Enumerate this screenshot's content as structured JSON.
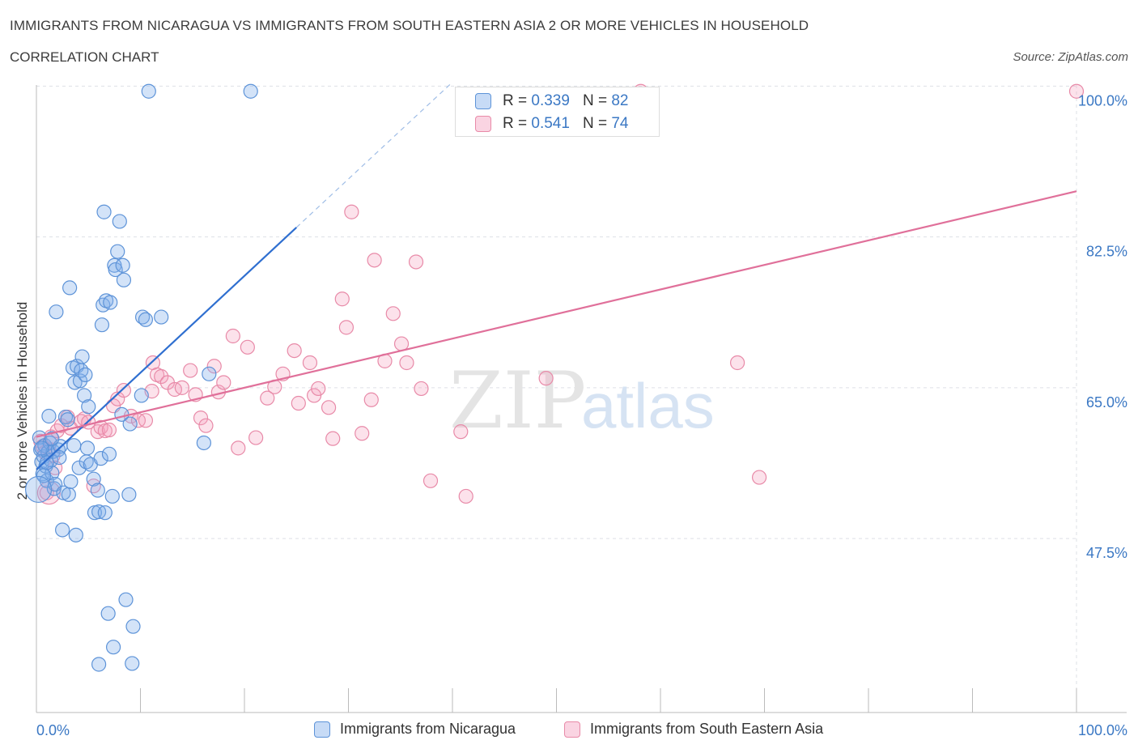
{
  "title": "IMMIGRANTS FROM NICARAGUA VS IMMIGRANTS FROM SOUTH EASTERN ASIA 2 OR MORE VEHICLES IN HOUSEHOLD",
  "subtitle": "CORRELATION CHART",
  "source": "Source: ZipAtlas.com",
  "watermark": {
    "zip": "ZIP",
    "atlas": "atlas"
  },
  "legend_top": [
    {
      "r_label": "R =",
      "r_value": "0.339",
      "n_label": "N =",
      "n_value": "82"
    },
    {
      "r_label": "R =",
      "r_value": "0.541",
      "n_label": "N =",
      "n_value": "74"
    }
  ],
  "legend_bottom": [
    {
      "label": "Immigrants from Nicaragua"
    },
    {
      "label": "Immigrants from South Eastern Asia"
    }
  ],
  "colors": {
    "blue_fill": "rgba(130,175,235,0.35)",
    "blue_stroke": "#5d93d8",
    "blue_line": "#2f6fd0",
    "pink_fill": "rgba(245,160,190,0.30)",
    "pink_stroke": "#e88aa8",
    "pink_line": "#e0709a",
    "grid": "#dde0e6",
    "tick_label": "#3b78c4"
  },
  "chart_data": {
    "type": "scatter",
    "xlabel": "",
    "ylabel": "2 or more Vehicles in Household",
    "xlim": [
      0,
      100
    ],
    "ylim": [
      29,
      99
    ],
    "x_tick_labels": [
      "0.0%",
      "100.0%"
    ],
    "y_ticks": [
      47.5,
      65.0,
      82.5,
      100.0
    ],
    "y_tick_labels": [
      "47.5%",
      "65.0%",
      "82.5%",
      "100.0%"
    ],
    "grid": true,
    "series": [
      {
        "name": "Immigrants from Nicaragua",
        "color": "blue",
        "trend": {
          "x0": 0,
          "y0": 55.5,
          "x1": 25,
          "y1": 83.6,
          "dash_to_x": 40
        },
        "points": [
          [
            0.3,
            59.2
          ],
          [
            0.4,
            57.8
          ],
          [
            0.5,
            56.4
          ],
          [
            0.6,
            55.0
          ],
          [
            0.7,
            57.0
          ],
          [
            0.8,
            58.3
          ],
          [
            0.9,
            55.9
          ],
          [
            1.0,
            54.2
          ],
          [
            1.1,
            57.5
          ],
          [
            1.2,
            61.7
          ],
          [
            1.3,
            58.6
          ],
          [
            1.4,
            56.6
          ],
          [
            1.5,
            55.1
          ],
          [
            1.6,
            57.6
          ],
          [
            1.7,
            53.3
          ],
          [
            1.8,
            53.8
          ],
          [
            1.9,
            73.8
          ],
          [
            2.1,
            57.8
          ],
          [
            2.3,
            58.2
          ],
          [
            2.5,
            48.5
          ],
          [
            2.6,
            52.8
          ],
          [
            2.8,
            61.6
          ],
          [
            3.0,
            61.3
          ],
          [
            3.1,
            52.6
          ],
          [
            3.2,
            76.6
          ],
          [
            3.3,
            54.1
          ],
          [
            3.5,
            67.3
          ],
          [
            3.6,
            58.3
          ],
          [
            3.7,
            65.6
          ],
          [
            3.8,
            47.9
          ],
          [
            3.9,
            67.5
          ],
          [
            4.1,
            55.7
          ],
          [
            4.2,
            65.8
          ],
          [
            4.3,
            67.0
          ],
          [
            4.4,
            68.6
          ],
          [
            4.6,
            64.1
          ],
          [
            4.7,
            66.5
          ],
          [
            4.8,
            56.4
          ],
          [
            4.9,
            58.0
          ],
          [
            5.0,
            62.8
          ],
          [
            5.2,
            56.1
          ],
          [
            5.5,
            54.4
          ],
          [
            5.6,
            50.5
          ],
          [
            5.9,
            53.1
          ],
          [
            6.0,
            50.6
          ],
          [
            6.2,
            56.8
          ],
          [
            6.3,
            72.3
          ],
          [
            6.4,
            74.6
          ],
          [
            6.5,
            85.4
          ],
          [
            6.6,
            50.5
          ],
          [
            6.7,
            75.1
          ],
          [
            6.9,
            38.8
          ],
          [
            7.0,
            57.3
          ],
          [
            7.1,
            74.9
          ],
          [
            7.3,
            52.4
          ],
          [
            7.4,
            34.9
          ],
          [
            7.5,
            79.2
          ],
          [
            7.6,
            78.7
          ],
          [
            7.8,
            80.8
          ],
          [
            8.0,
            84.3
          ],
          [
            8.2,
            61.9
          ],
          [
            8.3,
            79.2
          ],
          [
            8.4,
            77.5
          ],
          [
            8.6,
            40.4
          ],
          [
            8.9,
            52.6
          ],
          [
            9.0,
            60.8
          ],
          [
            9.2,
            33.0
          ],
          [
            9.3,
            37.3
          ],
          [
            10.1,
            64.1
          ],
          [
            10.2,
            73.2
          ],
          [
            10.5,
            72.9
          ],
          [
            10.8,
            99.4
          ],
          [
            12.0,
            73.2
          ],
          [
            16.1,
            58.6
          ],
          [
            16.6,
            66.6
          ],
          [
            20.6,
            99.4
          ],
          [
            0.5,
            58.0
          ],
          [
            1.0,
            56.3
          ],
          [
            0.7,
            54.8
          ],
          [
            1.5,
            59.1
          ],
          [
            6.0,
            32.9
          ],
          [
            2.2,
            56.9
          ]
        ]
      },
      {
        "name": "Immigrants from South Eastern Asia",
        "color": "pink",
        "trend": {
          "x0": 0,
          "y0": 59.3,
          "x1": 100,
          "y1": 87.8
        },
        "points": [
          [
            0.4,
            58.8
          ],
          [
            0.6,
            58.2
          ],
          [
            0.8,
            57.5
          ],
          [
            1.0,
            52.8
          ],
          [
            1.2,
            57.9
          ],
          [
            1.4,
            59.3
          ],
          [
            1.6,
            57.1
          ],
          [
            2.0,
            60.0
          ],
          [
            2.4,
            60.6
          ],
          [
            3.0,
            61.6
          ],
          [
            3.3,
            60.3
          ],
          [
            4.3,
            61.1
          ],
          [
            4.6,
            61.4
          ],
          [
            5.0,
            61.0
          ],
          [
            5.5,
            53.6
          ],
          [
            5.9,
            59.9
          ],
          [
            6.2,
            60.4
          ],
          [
            6.6,
            60.0
          ],
          [
            7.0,
            60.1
          ],
          [
            7.4,
            62.9
          ],
          [
            7.8,
            63.7
          ],
          [
            8.4,
            64.7
          ],
          [
            9.1,
            61.7
          ],
          [
            9.8,
            61.2
          ],
          [
            10.5,
            61.2
          ],
          [
            11.1,
            64.6
          ],
          [
            11.2,
            67.9
          ],
          [
            11.6,
            66.5
          ],
          [
            12.0,
            66.3
          ],
          [
            12.6,
            65.6
          ],
          [
            13.3,
            64.8
          ],
          [
            14.0,
            65.0
          ],
          [
            14.8,
            67.0
          ],
          [
            15.3,
            64.2
          ],
          [
            15.8,
            61.5
          ],
          [
            16.3,
            60.6
          ],
          [
            17.1,
            67.5
          ],
          [
            17.5,
            64.5
          ],
          [
            18.0,
            65.6
          ],
          [
            18.9,
            71.0
          ],
          [
            19.4,
            58.0
          ],
          [
            20.3,
            69.7
          ],
          [
            21.1,
            59.2
          ],
          [
            22.2,
            63.8
          ],
          [
            22.9,
            65.1
          ],
          [
            23.7,
            66.6
          ],
          [
            24.8,
            69.3
          ],
          [
            25.2,
            63.2
          ],
          [
            26.3,
            67.9
          ],
          [
            26.7,
            64.1
          ],
          [
            27.1,
            64.9
          ],
          [
            28.1,
            62.7
          ],
          [
            28.5,
            59.1
          ],
          [
            29.4,
            75.3
          ],
          [
            29.8,
            72.0
          ],
          [
            30.3,
            85.4
          ],
          [
            31.3,
            59.7
          ],
          [
            32.2,
            63.6
          ],
          [
            32.5,
            79.8
          ],
          [
            33.5,
            68.1
          ],
          [
            34.3,
            73.6
          ],
          [
            35.1,
            70.1
          ],
          [
            35.6,
            67.9
          ],
          [
            36.5,
            79.6
          ],
          [
            37.0,
            64.9
          ],
          [
            37.9,
            54.2
          ],
          [
            40.8,
            59.9
          ],
          [
            41.3,
            52.4
          ],
          [
            49.0,
            66.1
          ],
          [
            58.1,
            99.4
          ],
          [
            67.4,
            67.9
          ],
          [
            69.5,
            54.6
          ],
          [
            100.0,
            99.4
          ],
          [
            1.8,
            55.7
          ]
        ]
      }
    ]
  }
}
